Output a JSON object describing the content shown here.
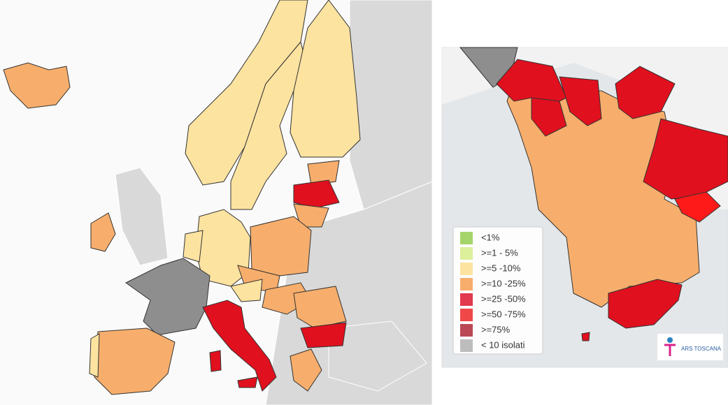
{
  "legend": {
    "items": [
      {
        "label": "<1%",
        "color": "#a5d46a"
      },
      {
        "label": ">=1 - 5%",
        "color": "#dcef9a"
      },
      {
        "label": ">=5 -10%",
        "color": "#fde3a0"
      },
      {
        "label": ">=10 -25%",
        "color": "#f7ae6c"
      },
      {
        "label": ">=25 -50%",
        "color": "#e23a4e"
      },
      {
        "label": ">=50 -75%",
        "color": "#f04848"
      },
      {
        "label": ">=75%",
        "color": "#b94a55"
      },
      {
        "label": "< 10 isolati",
        "color": "#bdbdbd"
      }
    ]
  },
  "logo": {
    "text": "ARS TOSCANA"
  }
}
